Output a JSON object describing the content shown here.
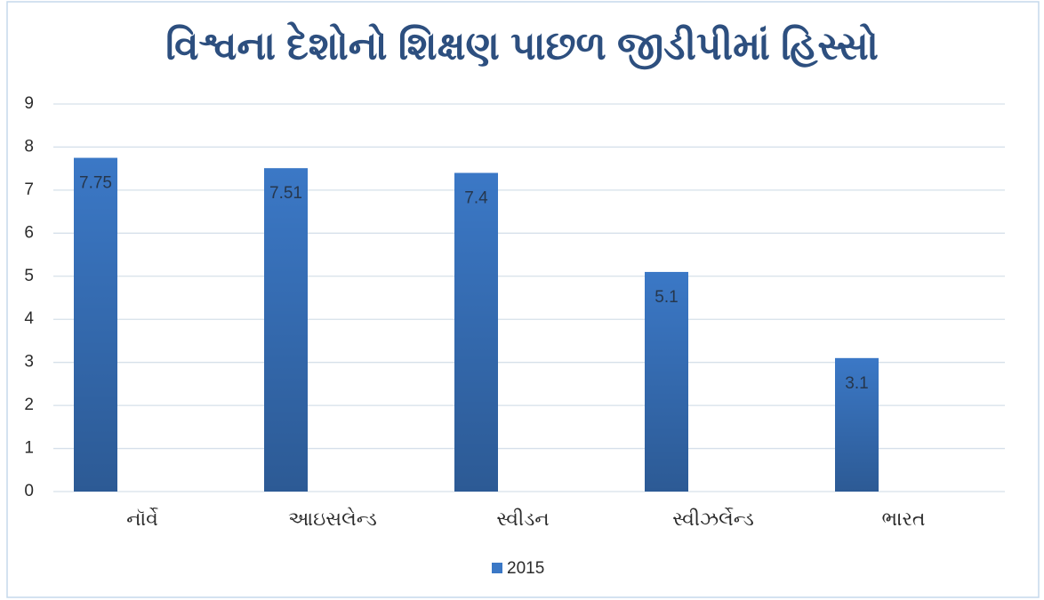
{
  "chart_data": {
    "type": "bar",
    "title": "વિશ્વના દેશોનો  શિક્ષણ પાછળ જીડીપીમાં હિસ્સો",
    "categories": [
      "નૉર્વે",
      "આઇસલેન્ડ",
      "સ્વીડન",
      "સ્વીઝર્લેન્ડ",
      "ભારત"
    ],
    "series": [
      {
        "name": "2015",
        "color": "#3b78c6",
        "values": [
          7.75,
          7.51,
          7.4,
          5.1,
          3.1
        ]
      }
    ],
    "ylim": [
      0,
      9
    ],
    "yticks": [
      0,
      1,
      2,
      3,
      4,
      5,
      6,
      7,
      8,
      9
    ],
    "grid": true,
    "legend": "bottom"
  }
}
